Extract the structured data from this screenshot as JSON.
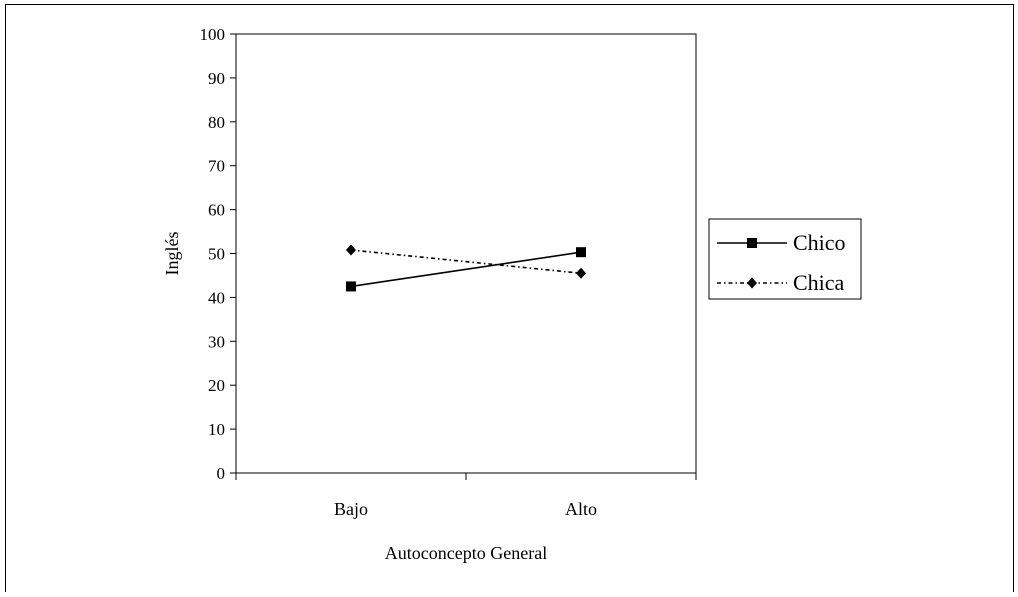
{
  "chart_data": {
    "type": "line",
    "title": "",
    "xlabel": "Autoconcepto General",
    "ylabel": "Inglés",
    "categories": [
      "Bajo",
      "Alto"
    ],
    "ylim": [
      0,
      100
    ],
    "yticks": [
      0,
      10,
      20,
      30,
      40,
      50,
      60,
      70,
      80,
      90,
      100
    ],
    "grid": false,
    "legend_position": "right",
    "series": [
      {
        "name": "Chico",
        "values": [
          42.5,
          50.3
        ],
        "marker": "square",
        "line_style": "solid",
        "color": "#000000"
      },
      {
        "name": "Chica",
        "values": [
          50.8,
          45.5
        ],
        "marker": "diamond",
        "line_style": "dash-dot",
        "color": "#000000"
      }
    ]
  }
}
